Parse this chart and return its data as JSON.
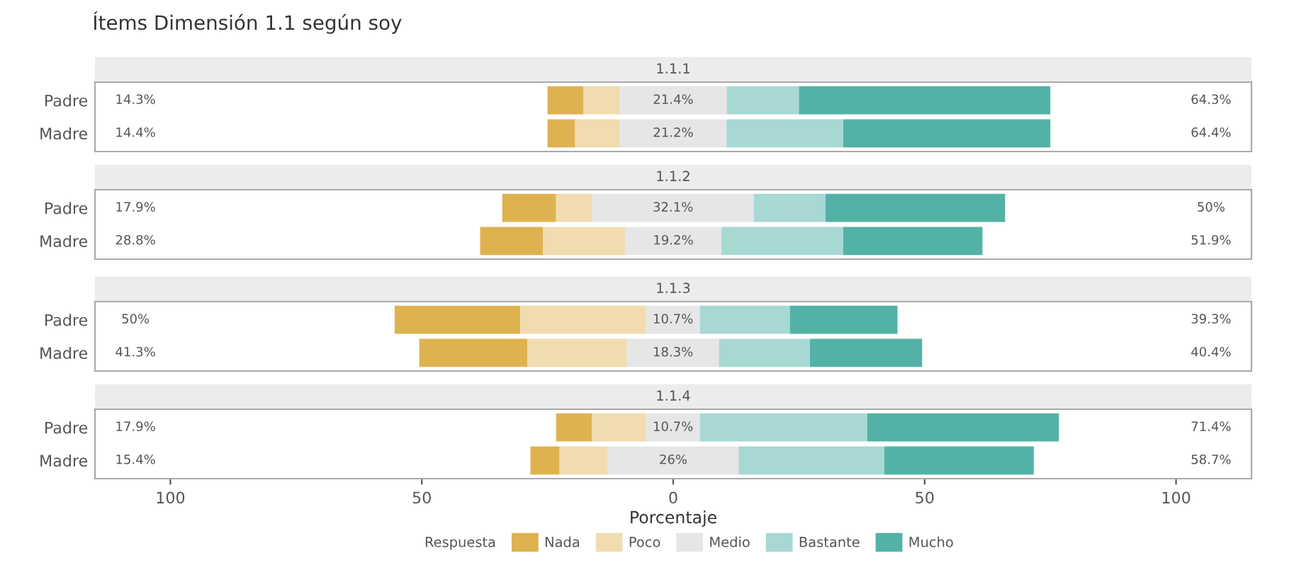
{
  "chart_data": [
    {
      "type": "bar",
      "title": "Ítems Dimensión 1.1 según soy",
      "subtitle": "1.1.1",
      "orientation": "horizontal",
      "categories": [
        "Padre",
        "Madre"
      ],
      "series": [
        {
          "color": "#dfb250",
          "base": [
            -25,
            -25
          ],
          "values": [
            7.1,
            5.5
          ]
        },
        {
          "color": "#f0dcaf",
          "base": [
            -17.9,
            -19.5
          ],
          "values": [
            7.2,
            8.9
          ]
        },
        {
          "color": "#e6e6e6",
          "base": [
            -10.7,
            -10.6
          ],
          "values": [
            21.4,
            21.2
          ],
          "value_labels": [
            "21.4%",
            "21.2%"
          ]
        },
        {
          "color": "#a7d8d4",
          "base": [
            10.7,
            10.6
          ],
          "values": [
            14.3,
            23.2
          ]
        },
        {
          "color": "#52b2a5",
          "base": [
            25,
            33.8
          ],
          "values": [
            50,
            41.2
          ]
        }
      ],
      "annotations": [
        "14.3%",
        "14.4%",
        "64.3%",
        "64.4%"
      ],
      "xlim": [
        -115,
        115
      ],
      "tick_labels": "y",
      "grid": false
    },
    {
      "type": "bar",
      "subtitle": "1.1.2",
      "orientation": "horizontal",
      "categories": [
        "Padre",
        "Madre"
      ],
      "series": [
        {
          "color": "#dfb250",
          "base": [
            -34,
            -38.4
          ],
          "values": [
            10.7,
            12.5
          ]
        },
        {
          "color": "#f0dcaf",
          "base": [
            -23.3,
            -25.9
          ],
          "values": [
            7.2,
            16.3
          ]
        },
        {
          "color": "#e6e6e6",
          "base": [
            -16.1,
            -9.6
          ],
          "values": [
            32.1,
            19.2
          ],
          "value_labels": [
            "32.1%",
            "19.2%"
          ]
        },
        {
          "color": "#a7d8d4",
          "base": [
            16,
            9.6
          ],
          "values": [
            14.3,
            24.2
          ]
        },
        {
          "color": "#52b2a5",
          "base": [
            30.3,
            33.8
          ],
          "values": [
            35.7,
            27.7
          ]
        }
      ],
      "annotations": [
        "17.9%",
        "28.8%",
        "50%",
        "51.9%"
      ],
      "xlim": [
        -115,
        115
      ],
      "tick_labels": "y",
      "grid": false
    },
    {
      "type": "bar",
      "subtitle": "1.1.3",
      "orientation": "horizontal",
      "categories": [
        "Padre",
        "Madre"
      ],
      "series": [
        {
          "color": "#dfb250",
          "base": [
            -55.4,
            -50.5
          ],
          "values": [
            25,
            21.5
          ]
        },
        {
          "color": "#f0dcaf",
          "base": [
            -30.4,
            -29
          ],
          "values": [
            25,
            19.8
          ]
        },
        {
          "color": "#e6e6e6",
          "base": [
            -5.4,
            -9.2
          ],
          "values": [
            10.7,
            18.3
          ],
          "value_labels": [
            "10.7%",
            "18.3%"
          ]
        },
        {
          "color": "#a7d8d4",
          "base": [
            5.3,
            9.1
          ],
          "values": [
            17.9,
            18.1
          ]
        },
        {
          "color": "#52b2a5",
          "base": [
            23.2,
            27.2
          ],
          "values": [
            21.4,
            22.3
          ]
        }
      ],
      "annotations": [
        "50%",
        "41.3%",
        "39.3%",
        "40.4%"
      ],
      "xlim": [
        -115,
        115
      ],
      "tick_labels": "y",
      "grid": false
    },
    {
      "type": "bar",
      "subtitle": "1.1.4",
      "xlabel": "Porcentaje",
      "legend_title": "Respuesta",
      "legend": "bottom",
      "orientation": "horizontal",
      "categories": [
        "Padre",
        "Madre"
      ],
      "series": [
        {
          "name": "Nada",
          "color": "#dfb250",
          "base": [
            -23.3,
            -28.4
          ],
          "values": [
            7.1,
            5.8
          ]
        },
        {
          "name": "Poco",
          "color": "#f0dcaf",
          "base": [
            -16.2,
            -22.6
          ],
          "values": [
            10.8,
            9.6
          ]
        },
        {
          "name": "Medio",
          "color": "#e6e6e6",
          "base": [
            -5.4,
            -13
          ],
          "values": [
            10.7,
            26
          ],
          "value_labels": [
            "10.7%",
            "26%"
          ]
        },
        {
          "name": "Bastante",
          "color": "#a7d8d4",
          "base": [
            5.3,
            13
          ],
          "values": [
            33.3,
            29
          ]
        },
        {
          "name": "Mucho",
          "color": "#52b2a5",
          "base": [
            38.6,
            42
          ],
          "values": [
            38.1,
            29.7
          ]
        }
      ],
      "annotations": [
        "17.9%",
        "15.4%",
        "71.4%",
        "58.7%"
      ],
      "xlim": [
        -115,
        115
      ],
      "xticks": [
        {
          "value": -100,
          "label": "100"
        },
        {
          "value": -50,
          "label": "50"
        },
        0,
        50,
        100
      ],
      "grid": false
    }
  ]
}
